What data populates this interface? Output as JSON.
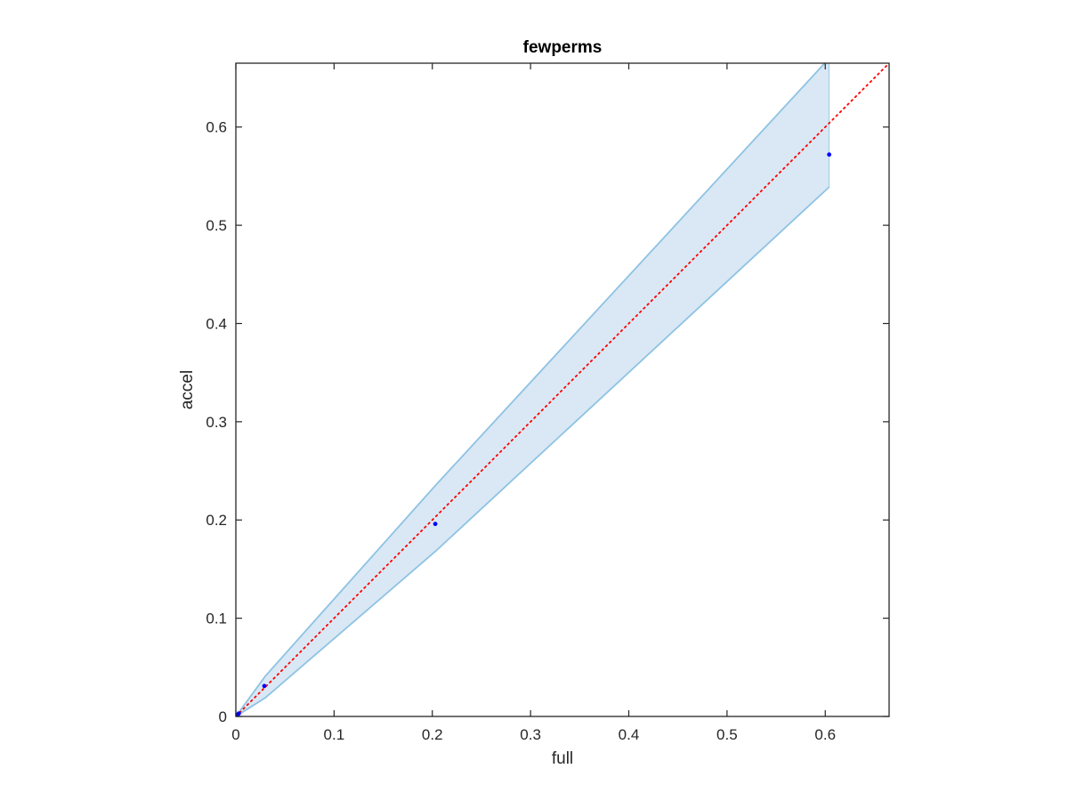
{
  "chart_data": {
    "type": "scatter",
    "title": "fewperms",
    "xlabel": "full",
    "ylabel": "accel",
    "xlim": [
      0,
      0.665
    ],
    "ylim": [
      0,
      0.665
    ],
    "xticks": [
      0,
      0.1,
      0.2,
      0.3,
      0.4,
      0.5,
      0.6
    ],
    "yticks": [
      0,
      0.1,
      0.2,
      0.3,
      0.4,
      0.5,
      0.6
    ],
    "xtick_labels": [
      "0",
      "0.1",
      "0.2",
      "0.3",
      "0.4",
      "0.5",
      "0.6"
    ],
    "ytick_labels": [
      "0",
      "0.1",
      "0.2",
      "0.3",
      "0.4",
      "0.5",
      "0.6"
    ],
    "grid": false,
    "points": {
      "x": [
        0.0,
        0.001,
        0.002,
        0.003,
        0.029,
        0.203,
        0.604
      ],
      "y": [
        0.0,
        0.001,
        0.002,
        0.003,
        0.031,
        0.196,
        0.572
      ],
      "color": "#0000ff"
    },
    "band": {
      "x": [
        0.0,
        0.03,
        0.203,
        0.604
      ],
      "upper": [
        0.0,
        0.041,
        0.235,
        0.67
      ],
      "lower": [
        0.0,
        0.019,
        0.168,
        0.539
      ],
      "fill_color": "#d9e8f4",
      "edge_color": "#8ec3e3"
    },
    "reference_line": {
      "x": [
        0,
        0.665
      ],
      "y": [
        0,
        0.665
      ],
      "color": "#ff0000",
      "style": "dotted"
    }
  }
}
